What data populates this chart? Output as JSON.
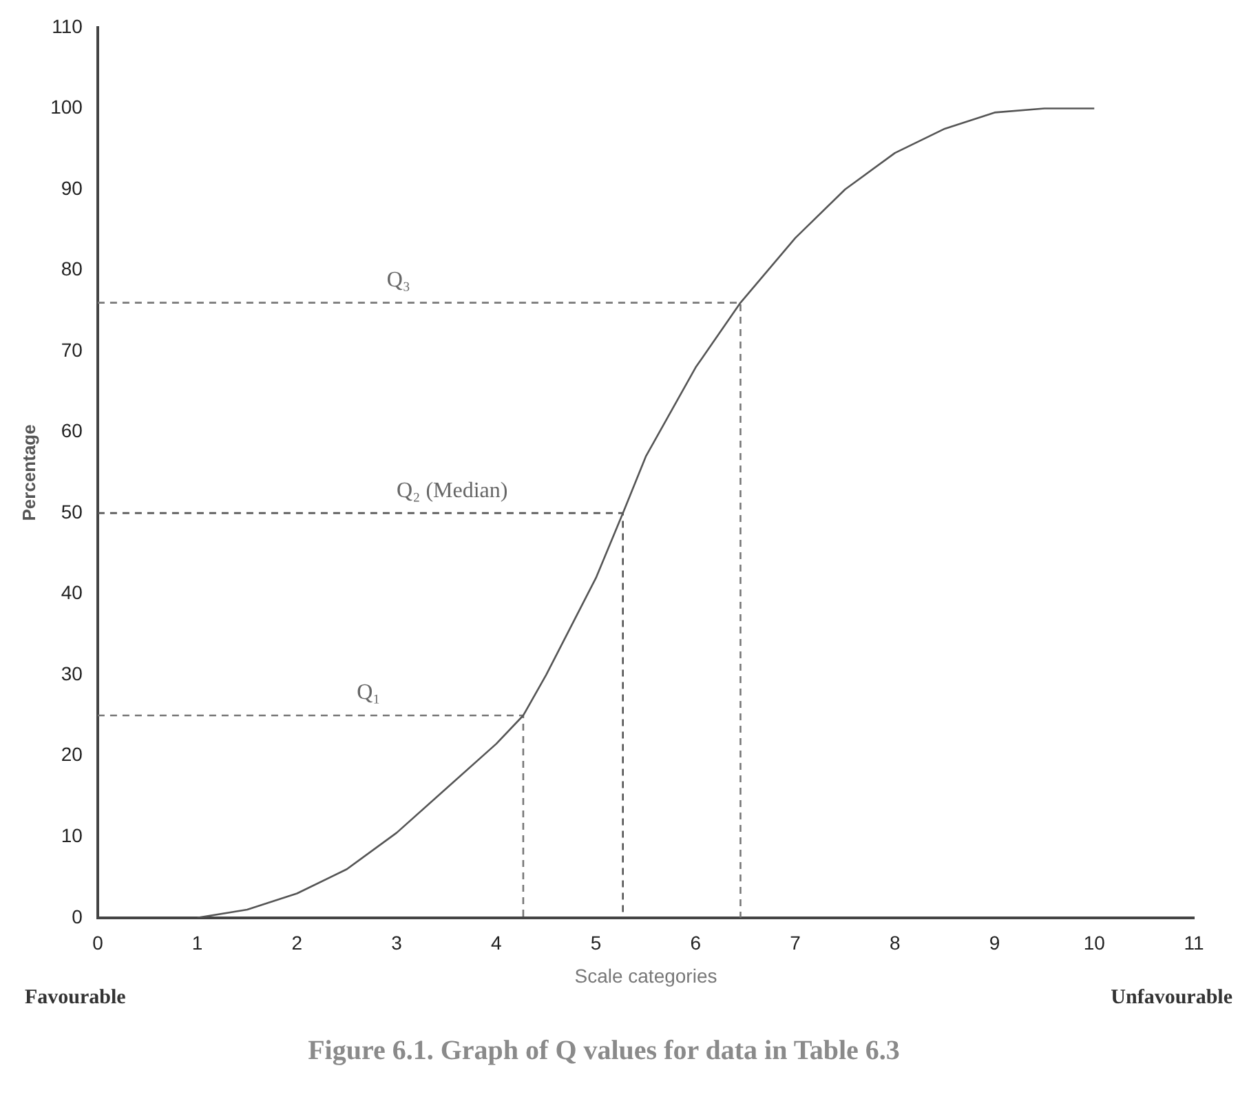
{
  "chart_data": {
    "type": "line",
    "title": "Figure 6.1. Graph of Q values for data in Table 6.3",
    "xlabel": "Scale categories",
    "ylabel": "Percentage",
    "xlim": [
      0,
      11
    ],
    "xticks": [
      0,
      1,
      2,
      3,
      4,
      5,
      6,
      7,
      8,
      9,
      10,
      11
    ],
    "ylim": [
      0,
      110
    ],
    "yticks": [
      0,
      10,
      20,
      30,
      40,
      50,
      60,
      70,
      80,
      90,
      100,
      110
    ],
    "grid": false,
    "legend": false,
    "marker": "none",
    "series": [
      {
        "color": "#555555",
        "line_style": "solid",
        "x": [
          1,
          1.5,
          2,
          2.5,
          3,
          3.5,
          4,
          4.27,
          4.5,
          5,
          5.27,
          5.5,
          6,
          6.45,
          7,
          7.5,
          8,
          8.5,
          9,
          9.5,
          10
        ],
        "values": [
          0,
          1,
          3,
          6,
          10.5,
          16,
          21.5,
          25,
          30,
          42,
          50,
          57,
          68,
          76,
          84,
          90,
          94.5,
          97.5,
          99.5,
          100,
          100
        ]
      },
      {
        "color": "#777777",
        "line_style": "dashed",
        "x": [
          0,
          4.27,
          4.27
        ],
        "values": [
          25,
          25,
          0
        ]
      },
      {
        "color": "#555555",
        "line_style": "dashed",
        "x": [
          0,
          5.27,
          5.27
        ],
        "values": [
          50,
          50,
          0
        ]
      },
      {
        "color": "#777777",
        "line_style": "dashed",
        "x": [
          0,
          6.45,
          6.45
        ],
        "values": [
          76,
          76,
          0
        ]
      }
    ],
    "annotations": [
      {
        "text": "Q₁",
        "x": 2.6,
        "y": 25
      },
      {
        "text": "Q₂ (Median)",
        "x": 3,
        "y": 50
      },
      {
        "text": "Q₃",
        "x": 2.9,
        "y": 76
      },
      "Favourable",
      "Unfavourable"
    ]
  }
}
